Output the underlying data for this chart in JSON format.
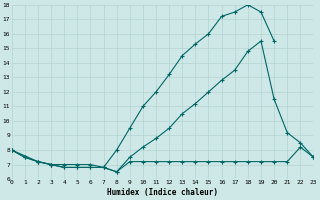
{
  "xlabel": "Humidex (Indice chaleur)",
  "xlim": [
    0,
    23
  ],
  "ylim": [
    6,
    18
  ],
  "yticks": [
    6,
    7,
    8,
    9,
    10,
    11,
    12,
    13,
    14,
    15,
    16,
    17,
    18
  ],
  "xticks": [
    0,
    1,
    2,
    3,
    4,
    5,
    6,
    7,
    8,
    9,
    10,
    11,
    12,
    13,
    14,
    15,
    16,
    17,
    18,
    19,
    20,
    21,
    22,
    23
  ],
  "bg_color": "#cde8e6",
  "grid_color": "#aecfcc",
  "line_color": "#006666",
  "line_top_x": [
    0,
    1,
    2,
    3,
    4,
    5,
    6,
    7,
    8,
    9,
    10,
    11,
    12,
    13,
    14,
    15,
    16,
    17,
    18,
    19,
    20
  ],
  "line_top_y": [
    8.0,
    7.5,
    7.2,
    7.0,
    6.8,
    6.8,
    6.8,
    6.8,
    8.0,
    9.5,
    11.0,
    12.0,
    13.2,
    14.5,
    15.3,
    16.0,
    17.2,
    17.5,
    18.0,
    17.5,
    15.5
  ],
  "line_mid_x": [
    0,
    1,
    2,
    3,
    4,
    5,
    6,
    7,
    8,
    9,
    10,
    11,
    12,
    13,
    14,
    15,
    16,
    17,
    18,
    19,
    20,
    21,
    22,
    23
  ],
  "line_mid_y": [
    8.0,
    7.5,
    7.2,
    7.0,
    6.8,
    6.8,
    6.8,
    6.8,
    6.5,
    7.5,
    8.2,
    8.8,
    9.5,
    10.5,
    11.2,
    12.0,
    12.8,
    13.5,
    14.8,
    15.5,
    11.5,
    9.2,
    8.5,
    7.5
  ],
  "line_bot_x": [
    0,
    2,
    3,
    4,
    5,
    6,
    7,
    8,
    9,
    10,
    11,
    12,
    13,
    14,
    15,
    16,
    17,
    18,
    19,
    20,
    21,
    22,
    23
  ],
  "line_bot_y": [
    8.0,
    7.2,
    7.0,
    7.0,
    7.0,
    7.0,
    6.8,
    6.5,
    7.2,
    7.2,
    7.2,
    7.2,
    7.2,
    7.2,
    7.2,
    7.2,
    7.2,
    7.2,
    7.2,
    7.2,
    7.2,
    8.2,
    7.5
  ]
}
